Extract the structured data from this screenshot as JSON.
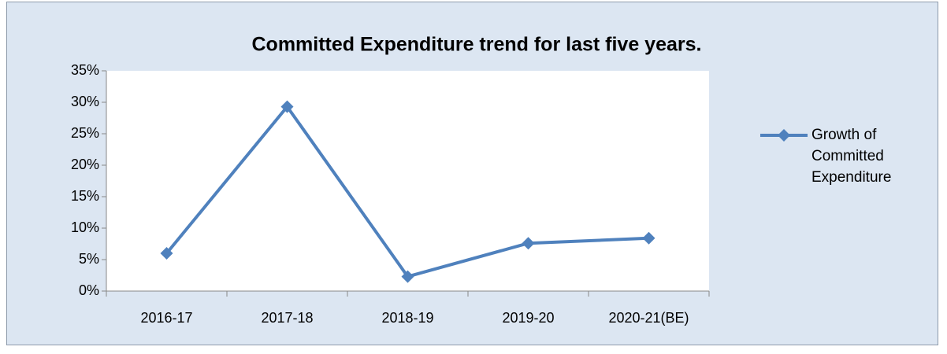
{
  "chart_data": {
    "type": "line",
    "title": "Committed Expenditure trend for last five years.",
    "categories": [
      "2016-17",
      "2017-18",
      "2018-19",
      "2019-20",
      "2020-21(BE)"
    ],
    "series": [
      {
        "name": "Growth of Committed Expenditure",
        "color": "#4f81bd",
        "values": [
          6,
          29.3,
          2.3,
          7.6,
          8.4
        ]
      }
    ],
    "ylim": [
      0,
      35
    ],
    "yticks": [
      {
        "value": 0,
        "label": "0%"
      },
      {
        "value": 5,
        "label": "5%"
      },
      {
        "value": 10,
        "label": "10%"
      },
      {
        "value": 15,
        "label": "15%"
      },
      {
        "value": 20,
        "label": "20%"
      },
      {
        "value": 25,
        "label": "25%"
      },
      {
        "value": 30,
        "label": "30%"
      },
      {
        "value": 35,
        "label": "35%"
      }
    ],
    "legend": "right"
  }
}
